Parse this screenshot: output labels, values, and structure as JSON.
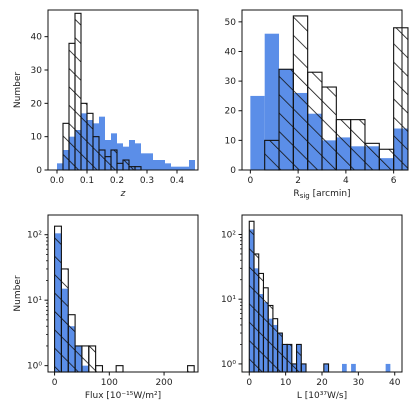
{
  "colors": {
    "blue": "#5b8ee8",
    "outline": "#111111",
    "hatch": "#111111"
  },
  "chart_data": [
    {
      "type": "bar",
      "panel": "top-left",
      "scale": "linear",
      "xlabel": "z",
      "ylabel": "Number",
      "xlim": [
        -0.03,
        0.47
      ],
      "ylim": [
        0,
        48
      ],
      "xticks": [
        0.0,
        0.1,
        0.2,
        0.3,
        0.4
      ],
      "xtick_labels": [
        "0.0",
        "0.1",
        "0.2",
        "0.3",
        "0.4"
      ],
      "yticks": [
        0,
        10,
        20,
        30,
        40
      ],
      "ytick_labels": [
        "0",
        "10",
        "20",
        "30",
        "40"
      ],
      "series": [
        {
          "style": "filled",
          "bins": [
            [
              0.0,
              0.02,
              2
            ],
            [
              0.02,
              0.04,
              6
            ],
            [
              0.04,
              0.06,
              10
            ],
            [
              0.06,
              0.08,
              12
            ],
            [
              0.08,
              0.1,
              17
            ],
            [
              0.1,
              0.12,
              15
            ],
            [
              0.12,
              0.14,
              14
            ],
            [
              0.14,
              0.16,
              16
            ],
            [
              0.16,
              0.18,
              9
            ],
            [
              0.18,
              0.2,
              11
            ],
            [
              0.2,
              0.22,
              8
            ],
            [
              0.22,
              0.24,
              7
            ],
            [
              0.24,
              0.26,
              9
            ],
            [
              0.26,
              0.28,
              8
            ],
            [
              0.28,
              0.3,
              5
            ],
            [
              0.3,
              0.32,
              5
            ],
            [
              0.32,
              0.34,
              3
            ],
            [
              0.34,
              0.36,
              3
            ],
            [
              0.36,
              0.38,
              2
            ],
            [
              0.38,
              0.4,
              1
            ],
            [
              0.4,
              0.42,
              1
            ],
            [
              0.42,
              0.44,
              1
            ],
            [
              0.44,
              0.46,
              3
            ]
          ]
        },
        {
          "style": "hatched",
          "bins": [
            [
              0.02,
              0.04,
              14
            ],
            [
              0.04,
              0.06,
              38
            ],
            [
              0.06,
              0.08,
              47
            ],
            [
              0.08,
              0.1,
              20
            ],
            [
              0.1,
              0.12,
              17
            ],
            [
              0.12,
              0.14,
              10
            ],
            [
              0.14,
              0.16,
              6
            ],
            [
              0.16,
              0.18,
              4
            ],
            [
              0.18,
              0.2,
              6
            ],
            [
              0.2,
              0.22,
              2
            ],
            [
              0.22,
              0.24,
              3
            ],
            [
              0.24,
              0.26,
              1
            ],
            [
              0.26,
              0.28,
              1
            ]
          ]
        }
      ]
    },
    {
      "type": "bar",
      "panel": "top-right",
      "scale": "linear",
      "xlabel": "R_sig [arcmin]",
      "ylabel": "",
      "xlim": [
        -0.35,
        6.35
      ],
      "ylim": [
        0,
        54
      ],
      "xticks": [
        0,
        2,
        4,
        6
      ],
      "xtick_labels": [
        "0",
        "2",
        "4",
        "6"
      ],
      "yticks": [
        0,
        10,
        20,
        30,
        40,
        50
      ],
      "ytick_labels": [
        "0",
        "10",
        "20",
        "30",
        "40",
        "50"
      ],
      "series": [
        {
          "style": "filled",
          "bins": [
            [
              0.0,
              0.6,
              25
            ],
            [
              0.6,
              1.2,
              46
            ],
            [
              1.2,
              1.8,
              34
            ],
            [
              1.8,
              2.4,
              26
            ],
            [
              2.4,
              3.0,
              19
            ],
            [
              3.0,
              3.6,
              10
            ],
            [
              3.6,
              4.2,
              11
            ],
            [
              4.2,
              4.8,
              8
            ],
            [
              4.8,
              5.4,
              8
            ],
            [
              5.4,
              6.0,
              4
            ],
            [
              6.0,
              6.6,
              14
            ]
          ]
        },
        {
          "style": "hatched",
          "bins": [
            [
              0.6,
              1.2,
              10
            ],
            [
              1.2,
              1.8,
              34
            ],
            [
              1.8,
              2.4,
              52
            ],
            [
              2.4,
              3.0,
              33
            ],
            [
              3.0,
              3.6,
              28
            ],
            [
              3.6,
              4.2,
              17
            ],
            [
              4.2,
              4.8,
              17
            ],
            [
              4.8,
              5.4,
              9
            ],
            [
              5.4,
              6.0,
              7
            ],
            [
              6.0,
              6.6,
              48
            ]
          ]
        }
      ]
    },
    {
      "type": "bar",
      "panel": "bottom-left",
      "scale": "log",
      "xlabel": "Flux [10⁻¹⁵W/m²]",
      "ylabel": "Number",
      "xlim": [
        -12,
        262
      ],
      "ylim": [
        0.8,
        200
      ],
      "xticks": [
        0,
        100,
        200
      ],
      "xtick_labels": [
        "0",
        "100",
        "200"
      ],
      "yticks": [
        1,
        10,
        100
      ],
      "ytick_labels": [
        "10⁰",
        "10¹",
        "10²"
      ],
      "series": [
        {
          "style": "filled",
          "bins": [
            [
              0,
              12.5,
              105
            ],
            [
              12.5,
              25,
              15
            ],
            [
              25,
              37.5,
              4
            ],
            [
              37.5,
              50,
              2
            ],
            [
              50,
              62.5,
              1
            ]
          ]
        },
        {
          "style": "hatched",
          "bins": [
            [
              0,
              12.5,
              135
            ],
            [
              12.5,
              25,
              30
            ],
            [
              25,
              37.5,
              6
            ],
            [
              37.5,
              50,
              2
            ],
            [
              50,
              62.5,
              2
            ],
            [
              62.5,
              75,
              2
            ],
            [
              75,
              87.5,
              1
            ],
            [
              112.5,
              125,
              1
            ],
            [
              243,
              255,
              1
            ]
          ]
        }
      ]
    },
    {
      "type": "bar",
      "panel": "bottom-right",
      "scale": "log",
      "xlabel": "L [10³⁷W/s]",
      "ylabel": "",
      "xlim": [
        -2,
        42
      ],
      "ylim": [
        0.75,
        200
      ],
      "xticks": [
        0,
        10,
        20,
        30,
        40
      ],
      "xtick_labels": [
        "0",
        "10",
        "20",
        "30",
        "40"
      ],
      "yticks": [
        1,
        10,
        100
      ],
      "ytick_labels": [
        "10⁰",
        "10¹",
        "10²"
      ],
      "series": [
        {
          "style": "filled",
          "bins": [
            [
              0,
              1.3,
              120
            ],
            [
              1.3,
              2.6,
              30
            ],
            [
              2.6,
              3.9,
              12
            ],
            [
              3.9,
              5.2,
              9
            ],
            [
              5.2,
              6.5,
              5
            ],
            [
              6.5,
              7.8,
              4
            ],
            [
              7.8,
              9.1,
              3
            ],
            [
              9.1,
              10.4,
              2
            ],
            [
              10.4,
              11.7,
              2
            ],
            [
              11.7,
              13.0,
              1
            ],
            [
              13.0,
              14.3,
              2
            ],
            [
              14.3,
              15.6,
              1
            ],
            [
              20.5,
              21.8,
              1
            ],
            [
              25.5,
              26.8,
              1
            ],
            [
              28.0,
              29.3,
              1
            ],
            [
              37.5,
              38.8,
              1
            ]
          ]
        },
        {
          "style": "hatched",
          "bins": [
            [
              0,
              1.3,
              160
            ],
            [
              1.3,
              2.6,
              50
            ],
            [
              2.6,
              3.9,
              25
            ],
            [
              3.9,
              5.2,
              15
            ],
            [
              5.2,
              6.5,
              8
            ],
            [
              6.5,
              7.8,
              5
            ],
            [
              7.8,
              9.1,
              3
            ],
            [
              9.1,
              10.4,
              2
            ],
            [
              10.4,
              11.7,
              2
            ],
            [
              11.7,
              13.0,
              1
            ],
            [
              13.0,
              14.3,
              2
            ],
            [
              14.3,
              15.6,
              1
            ],
            [
              20.5,
              21.8,
              1
            ]
          ]
        }
      ]
    }
  ]
}
